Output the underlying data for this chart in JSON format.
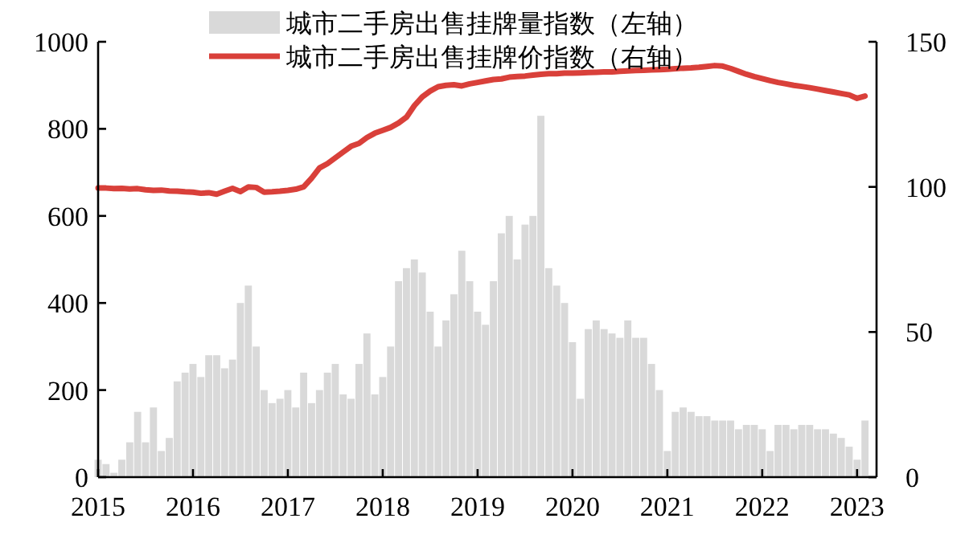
{
  "chart_data": {
    "type": "bar",
    "x": [
      "2015-01",
      "2015-02",
      "2015-03",
      "2015-04",
      "2015-05",
      "2015-06",
      "2015-07",
      "2015-08",
      "2015-09",
      "2015-10",
      "2015-11",
      "2015-12",
      "2016-01",
      "2016-02",
      "2016-03",
      "2016-04",
      "2016-05",
      "2016-06",
      "2016-07",
      "2016-08",
      "2016-09",
      "2016-10",
      "2016-11",
      "2016-12",
      "2017-01",
      "2017-02",
      "2017-03",
      "2017-04",
      "2017-05",
      "2017-06",
      "2017-07",
      "2017-08",
      "2017-09",
      "2017-10",
      "2017-11",
      "2017-12",
      "2018-01",
      "2018-02",
      "2018-03",
      "2018-04",
      "2018-05",
      "2018-06",
      "2018-07",
      "2018-08",
      "2018-09",
      "2018-10",
      "2018-11",
      "2018-12",
      "2019-01",
      "2019-02",
      "2019-03",
      "2019-04",
      "2019-05",
      "2019-06",
      "2019-07",
      "2019-08",
      "2019-09",
      "2019-10",
      "2019-11",
      "2019-12",
      "2020-01",
      "2020-02",
      "2020-03",
      "2020-04",
      "2020-05",
      "2020-06",
      "2020-07",
      "2020-08",
      "2020-09",
      "2020-10",
      "2020-11",
      "2020-12",
      "2021-01",
      "2021-02",
      "2021-03",
      "2021-04",
      "2021-05",
      "2021-06",
      "2021-07",
      "2021-08",
      "2021-09",
      "2021-10",
      "2021-11",
      "2021-12",
      "2022-01",
      "2022-02",
      "2022-03",
      "2022-04",
      "2022-05",
      "2022-06",
      "2022-07",
      "2022-08",
      "2022-09",
      "2022-10",
      "2022-11",
      "2022-12",
      "2023-01",
      "2023-02"
    ],
    "series": [
      {
        "name": "城市二手房出售挂牌量指数（左轴）",
        "color": "#d9d9d9",
        "values": [
          40,
          30,
          10,
          40,
          80,
          150,
          80,
          160,
          60,
          90,
          220,
          240,
          260,
          230,
          280,
          280,
          250,
          270,
          400,
          440,
          300,
          200,
          170,
          180,
          200,
          160,
          240,
          170,
          200,
          240,
          260,
          190,
          180,
          260,
          330,
          190,
          230,
          300,
          450,
          480,
          500,
          470,
          380,
          300,
          360,
          420,
          520,
          450,
          380,
          350,
          450,
          560,
          600,
          500,
          580,
          600,
          830,
          480,
          440,
          400,
          310,
          180,
          340,
          360,
          340,
          330,
          320,
          360,
          320,
          320,
          260,
          200,
          60,
          150,
          160,
          150,
          140,
          140,
          130,
          130,
          130,
          110,
          120,
          120,
          110,
          60,
          120,
          120,
          110,
          120,
          120,
          110,
          110,
          100,
          90,
          70,
          40,
          130
        ]
      },
      {
        "name": "城市二手房出售挂牌价指数（右轴）",
        "type": "line",
        "axis": "y2",
        "color": "#d9403a",
        "values": [
          99.6,
          99.6,
          99.4,
          99.5,
          99.3,
          99.4,
          99,
          98.8,
          98.9,
          98.6,
          98.5,
          98.3,
          98.2,
          97.8,
          98,
          97.5,
          98.5,
          99.5,
          98.4,
          100,
          99.8,
          98.2,
          98.3,
          98.5,
          98.8,
          99.2,
          100,
          103,
          106.5,
          108,
          110,
          112,
          114,
          115,
          117,
          118.5,
          119.5,
          120.5,
          122,
          124,
          128,
          131,
          133,
          134.5,
          135,
          135.2,
          134.8,
          135.5,
          136,
          136.5,
          137,
          137.2,
          137.8,
          138,
          138.2,
          138.5,
          138.8,
          139,
          139,
          139.2,
          139.2,
          139.3,
          139.4,
          139.5,
          139.6,
          139.6,
          139.8,
          140,
          140.1,
          140.2,
          140.3,
          140.4,
          140.5,
          140.7,
          140.9,
          141,
          141.2,
          141.5,
          141.8,
          141.6,
          140.8,
          139.8,
          138.8,
          138,
          137.3,
          136.6,
          136,
          135.5,
          135,
          134.6,
          134.2,
          133.7,
          133.2,
          132.7,
          132.2,
          131.7,
          130.5,
          131.3
        ]
      }
    ],
    "xlim": [
      "2015-01-01",
      "2023-03-15"
    ],
    "xticks": [
      "2015",
      "2016",
      "2017",
      "2018",
      "2019",
      "2020",
      "2021",
      "2022",
      "2023"
    ],
    "ylim": [
      0,
      1000
    ],
    "yticks": [
      0,
      200,
      400,
      600,
      800,
      1000
    ],
    "y2lim": [
      0,
      150
    ],
    "y2ticks": [
      0,
      50,
      100,
      150
    ],
    "legend": "top",
    "grid": false
  }
}
